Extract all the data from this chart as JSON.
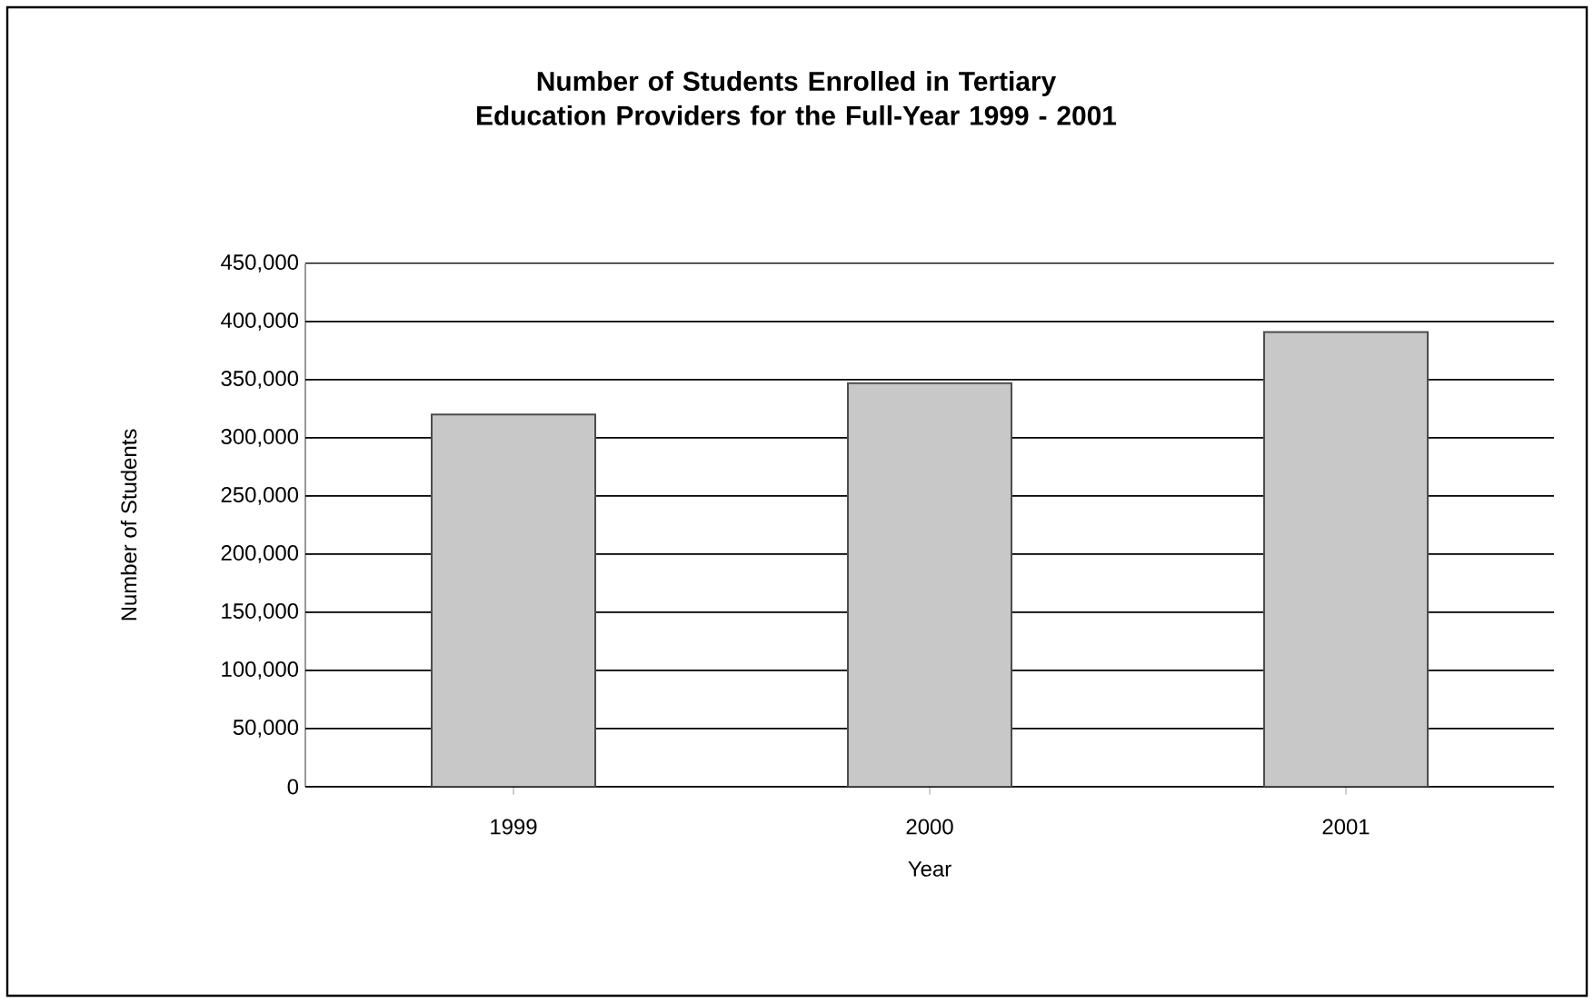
{
  "chart_data": {
    "type": "bar",
    "title": "Number of Students Enrolled in Tertiary Education Providers for the Full-Year 1999 - 2001",
    "xlabel": "Year",
    "ylabel": "Number of Students",
    "categories": [
      "1999",
      "2000",
      "2001"
    ],
    "values": [
      320000,
      347000,
      391000
    ],
    "color": "#c8c8c8",
    "ylim": [
      0,
      450000
    ],
    "yticks": [
      {
        "value": 0,
        "label": "0"
      },
      {
        "value": 50000,
        "label": "50,000"
      },
      {
        "value": 100000,
        "label": "100,000"
      },
      {
        "value": 150000,
        "label": "150,000"
      },
      {
        "value": 200000,
        "label": "200,000"
      },
      {
        "value": 250000,
        "label": "250,000"
      },
      {
        "value": 300000,
        "label": "300,000"
      },
      {
        "value": 350000,
        "label": "350,000"
      },
      {
        "value": 400000,
        "label": "400,000"
      },
      {
        "value": 450000,
        "label": "450,000"
      }
    ],
    "grid": "y"
  }
}
